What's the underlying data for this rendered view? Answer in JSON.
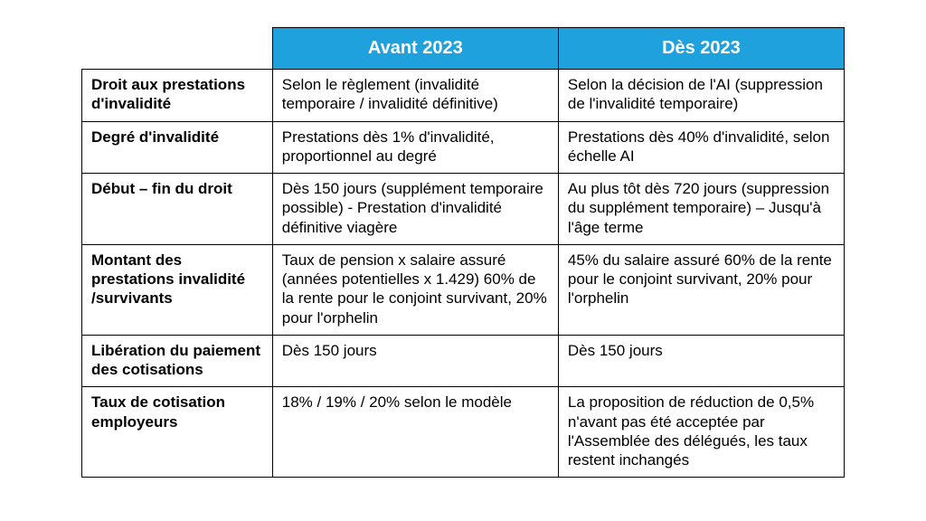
{
  "table": {
    "header_bg": "#1ea1dc",
    "header_fg": "#ffffff",
    "border_color": "#000000",
    "headers": [
      "Avant 2023",
      "Dès 2023"
    ],
    "rows": [
      {
        "label": "Droit aux prestations d'invalidité",
        "before": "Selon le règlement (invalidité temporaire / invalidité définitive)",
        "after": "Selon la décision de l'AI (suppression de l'invalidité temporaire)"
      },
      {
        "label": "Degré d'invalidité",
        "before": "Prestations dès 1% d'invalidité, proportionnel au degré",
        "after": "Prestations dès 40% d'invalidité, selon échelle AI"
      },
      {
        "label": "Début – fin du droit",
        "before": "Dès 150 jours (supplément temporaire possible) - Prestation d'invalidité définitive viagère",
        "after": "Au plus tôt dès 720 jours (suppression du supplément temporaire) – Jusqu'à l'âge terme"
      },
      {
        "label": "Montant des prestations invalidité /survivants",
        "before": "Taux de pension x salaire assuré (années potentielles x 1.429)\n60% de la rente pour le conjoint survivant, 20% pour l'orphelin",
        "after": "45% du salaire assuré\n60% de la rente pour le conjoint survivant, 20% pour l'orphelin"
      },
      {
        "label": "Libération du paiement des cotisations",
        "before": "Dès 150 jours",
        "after": "Dès 150 jours"
      },
      {
        "label": "Taux de cotisation employeurs",
        "before": "18% / 19% / 20%\nselon le modèle",
        "after": "La proposition de réduction de 0,5% n'avant pas été acceptée par l'Assemblée des délégués, les taux restent inchangés"
      }
    ]
  }
}
